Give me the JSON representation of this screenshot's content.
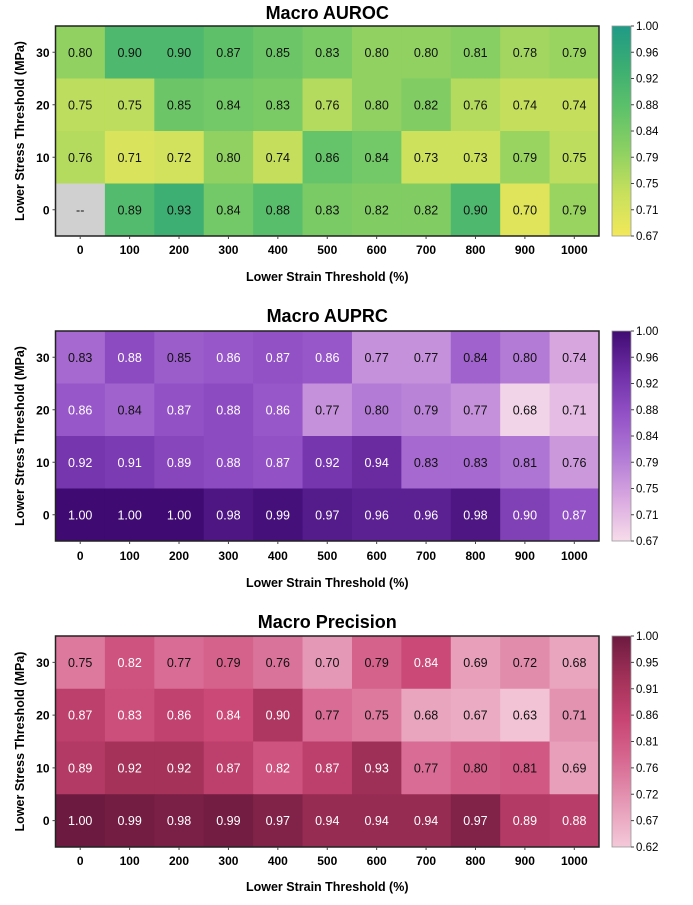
{
  "chart_data": [
    {
      "type": "heatmap",
      "title": "Macro AUROC",
      "xlabel": "Lower Strain Threshold (%)",
      "ylabel": "Lower Stress Threshold (MPa)",
      "x": [
        "0",
        "100",
        "200",
        "300",
        "400",
        "500",
        "600",
        "700",
        "800",
        "900",
        "1000"
      ],
      "y": [
        "30",
        "20",
        "10",
        "0"
      ],
      "values": [
        [
          0.8,
          0.9,
          0.9,
          0.87,
          0.85,
          0.83,
          0.8,
          0.8,
          0.81,
          0.78,
          0.79
        ],
        [
          0.75,
          0.75,
          0.85,
          0.84,
          0.83,
          0.76,
          0.8,
          0.82,
          0.76,
          0.74,
          0.74
        ],
        [
          0.76,
          0.71,
          0.72,
          0.8,
          0.74,
          0.86,
          0.84,
          0.73,
          0.73,
          0.79,
          0.75
        ],
        [
          null,
          0.89,
          0.93,
          0.84,
          0.88,
          0.83,
          0.82,
          0.82,
          0.9,
          0.7,
          0.79
        ]
      ],
      "missing_label": "--",
      "missing_color": "#d0d0d0",
      "colorbar_ticks": [
        "1.00",
        "0.96",
        "0.92",
        "0.88",
        "0.84",
        "0.79",
        "0.75",
        "0.71",
        "0.67"
      ],
      "crange": [
        0.67,
        1.0
      ],
      "colors": [
        "#f2e85a",
        "#c9e05c",
        "#8ed162",
        "#5fc26a",
        "#3cae72",
        "#1f9a86"
      ],
      "white_text_above": 2
    },
    {
      "type": "heatmap",
      "title": "Macro AUPRC",
      "xlabel": "Lower Strain Threshold (%)",
      "ylabel": "Lower Stress Threshold (MPa)",
      "x": [
        "0",
        "100",
        "200",
        "300",
        "400",
        "500",
        "600",
        "700",
        "800",
        "900",
        "1000"
      ],
      "y": [
        "30",
        "20",
        "10",
        "0"
      ],
      "values": [
        [
          0.83,
          0.88,
          0.85,
          0.86,
          0.87,
          0.86,
          0.77,
          0.77,
          0.84,
          0.8,
          0.74
        ],
        [
          0.86,
          0.84,
          0.87,
          0.88,
          0.86,
          0.77,
          0.8,
          0.79,
          0.77,
          0.68,
          0.71
        ],
        [
          0.92,
          0.91,
          0.89,
          0.88,
          0.87,
          0.92,
          0.94,
          0.83,
          0.83,
          0.81,
          0.76
        ],
        [
          1.0,
          1.0,
          1.0,
          0.98,
          0.99,
          0.97,
          0.96,
          0.96,
          0.98,
          0.9,
          0.87
        ]
      ],
      "colorbar_ticks": [
        "1.00",
        "0.96",
        "0.92",
        "0.88",
        "0.84",
        "0.79",
        "0.75",
        "0.71",
        "0.67"
      ],
      "crange": [
        0.67,
        1.0
      ],
      "colors": [
        "#f7dcea",
        "#d9a9e0",
        "#b27ad6",
        "#9352c6",
        "#6e2ea6",
        "#3f0b72"
      ],
      "white_text_above": 0.855
    },
    {
      "type": "heatmap",
      "title": "Macro Precision",
      "xlabel": "Lower Strain Threshold (%)",
      "ylabel": "Lower Stress Threshold (MPa)",
      "x": [
        "0",
        "100",
        "200",
        "300",
        "400",
        "500",
        "600",
        "700",
        "800",
        "900",
        "1000"
      ],
      "y": [
        "30",
        "20",
        "10",
        "0"
      ],
      "values": [
        [
          0.75,
          0.82,
          0.77,
          0.79,
          0.76,
          0.7,
          0.79,
          0.84,
          0.69,
          0.72,
          0.68
        ],
        [
          0.87,
          0.83,
          0.86,
          0.84,
          0.9,
          0.77,
          0.75,
          0.68,
          0.67,
          0.63,
          0.71
        ],
        [
          0.89,
          0.92,
          0.92,
          0.87,
          0.82,
          0.87,
          0.93,
          0.77,
          0.8,
          0.81,
          0.69
        ],
        [
          1.0,
          0.99,
          0.98,
          0.99,
          0.97,
          0.94,
          0.94,
          0.94,
          0.97,
          0.89,
          0.88
        ]
      ],
      "colorbar_ticks": [
        "1.00",
        "0.95",
        "0.91",
        "0.86",
        "0.81",
        "0.76",
        "0.72",
        "0.67",
        "0.62"
      ],
      "crange": [
        0.62,
        1.0
      ],
      "colors": [
        "#f4c9d9",
        "#e69bb7",
        "#d86b93",
        "#c84573",
        "#a23158",
        "#6c1a40"
      ],
      "white_text_above": 0.815
    }
  ]
}
